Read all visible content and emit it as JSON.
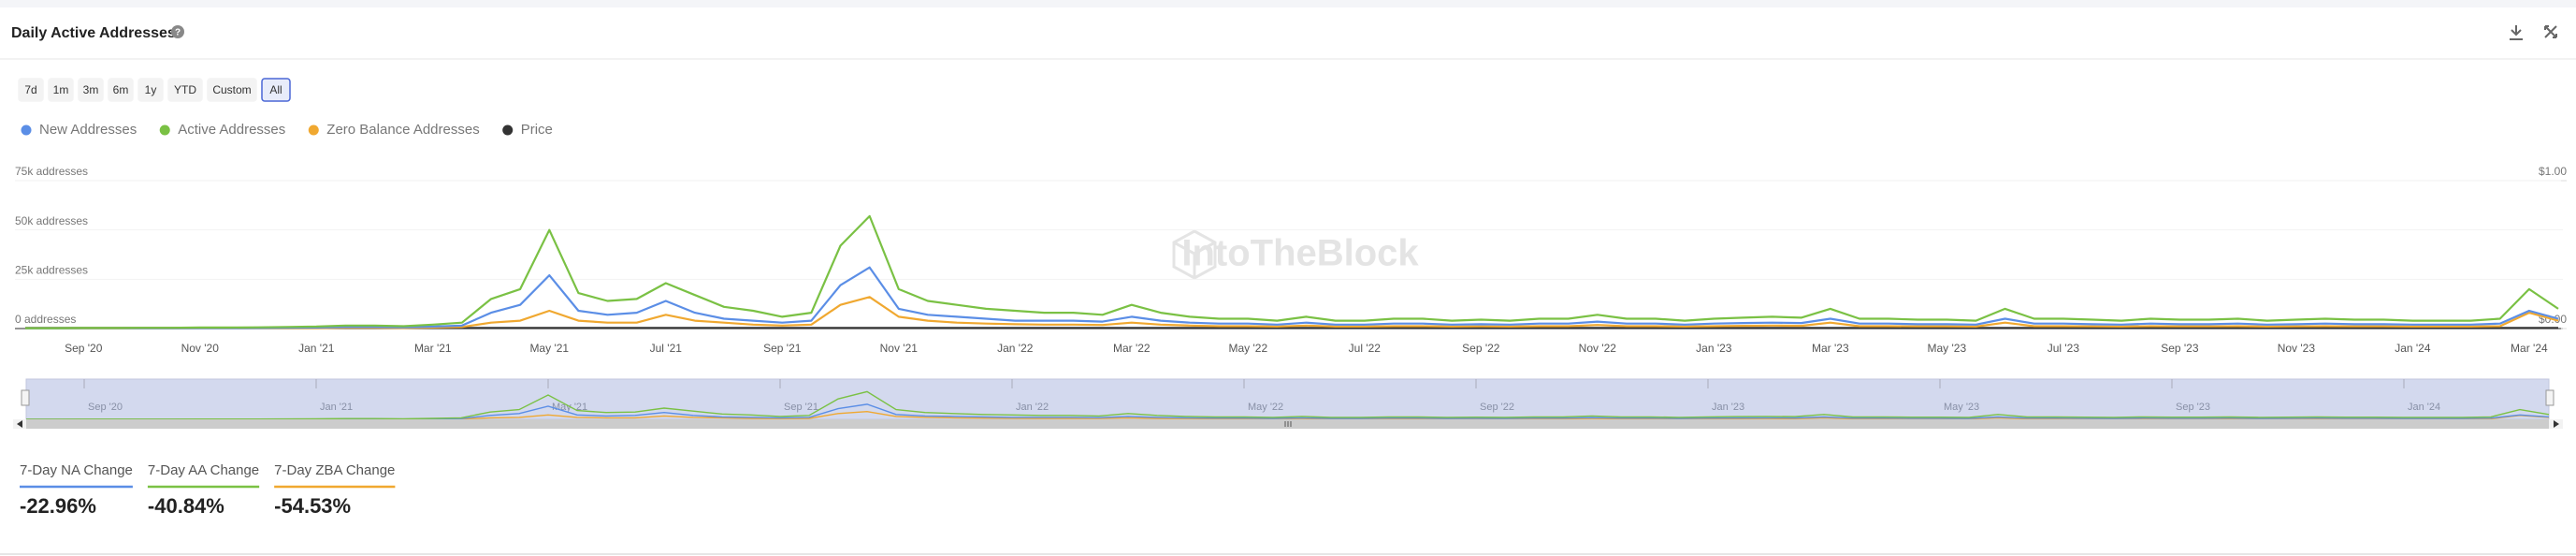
{
  "header": {
    "title": "Daily Active Addresses"
  },
  "range_buttons": [
    "7d",
    "1m",
    "3m",
    "6m",
    "1y",
    "YTD",
    "Custom",
    "All"
  ],
  "active_range": 7,
  "watermark": "IntoTheBlock",
  "chart_data": {
    "type": "line",
    "categories": [
      null,
      null,
      "Sep '20",
      null,
      null,
      null,
      "Nov '20",
      null,
      null,
      null,
      "Jan '21",
      null,
      null,
      null,
      "Mar '21",
      null,
      null,
      null,
      "May '21",
      null,
      null,
      null,
      "Jul '21",
      null,
      null,
      null,
      "Sep '21",
      null,
      null,
      null,
      "Nov '21",
      null,
      null,
      null,
      "Jan '22",
      null,
      null,
      null,
      "Mar '22",
      null,
      null,
      null,
      "May '22",
      null,
      null,
      null,
      "Jul '22",
      null,
      null,
      null,
      "Sep '22",
      null,
      null,
      null,
      "Nov '22",
      null,
      null,
      null,
      "Jan '23",
      null,
      null,
      null,
      "Mar '23",
      null,
      null,
      null,
      "May '23",
      null,
      null,
      null,
      "Jul '23",
      null,
      null,
      null,
      "Sep '23",
      null,
      null,
      null,
      "Nov '23",
      null,
      null,
      null,
      "Jan '24",
      null,
      null,
      null,
      "Mar '24",
      null
    ],
    "series": [
      {
        "name": "New Addresses",
        "color": "#5b8ee6",
        "values": [
          100,
          100,
          150,
          150,
          200,
          200,
          250,
          250,
          300,
          400,
          500,
          800,
          800,
          600,
          1000,
          1500,
          8000,
          12000,
          27000,
          9000,
          7000,
          8000,
          14000,
          8000,
          5000,
          4000,
          3000,
          4000,
          22000,
          31000,
          10000,
          7000,
          6000,
          5000,
          4000,
          4000,
          4000,
          3500,
          6000,
          4000,
          3000,
          2500,
          2500,
          2000,
          3000,
          2000,
          2000,
          2500,
          2500,
          2000,
          2200,
          2000,
          2500,
          2500,
          3500,
          2500,
          2500,
          2000,
          2500,
          2800,
          3000,
          2800,
          5000,
          2500,
          2500,
          2200,
          2200,
          2000,
          5000,
          2500,
          2500,
          2200,
          2000,
          2500,
          2200,
          2200,
          2500,
          2000,
          2200,
          2500,
          2200,
          2200,
          2000,
          2000,
          2000,
          2500,
          9000,
          5000
        ]
      },
      {
        "name": "Active Addresses",
        "color": "#7ac144",
        "values": [
          200,
          200,
          300,
          300,
          400,
          400,
          500,
          500,
          600,
          800,
          1000,
          1500,
          1500,
          1200,
          2000,
          3000,
          15000,
          20000,
          50000,
          18000,
          14000,
          15000,
          23000,
          17000,
          11000,
          9000,
          6000,
          8000,
          42000,
          57000,
          20000,
          14000,
          12000,
          10000,
          9000,
          8000,
          8000,
          7000,
          12000,
          8000,
          6000,
          5000,
          5000,
          4000,
          6000,
          4000,
          4000,
          5000,
          5000,
          4000,
          4500,
          4000,
          5000,
          5000,
          7000,
          5000,
          5000,
          4000,
          5000,
          5500,
          6000,
          5500,
          10000,
          5000,
          5000,
          4500,
          4500,
          4000,
          10000,
          5000,
          5000,
          4500,
          4000,
          5000,
          4500,
          4500,
          5000,
          4000,
          4500,
          5000,
          4500,
          4500,
          4000,
          4000,
          4000,
          5000,
          20000,
          10000
        ]
      },
      {
        "name": "Zero Balance Addresses",
        "color": "#f0a830",
        "values": [
          50,
          50,
          80,
          80,
          100,
          100,
          120,
          120,
          150,
          200,
          250,
          400,
          400,
          300,
          500,
          800,
          3000,
          4000,
          9000,
          4000,
          3000,
          3000,
          7000,
          4000,
          3000,
          2000,
          1500,
          2000,
          12000,
          16000,
          6000,
          4000,
          3000,
          2500,
          2200,
          2000,
          2000,
          1800,
          3000,
          2000,
          1500,
          1200,
          1200,
          1000,
          1500,
          1000,
          1000,
          1200,
          1200,
          1000,
          1100,
          1000,
          1200,
          1200,
          1800,
          1200,
          1200,
          1000,
          1200,
          1400,
          1500,
          1400,
          3000,
          1200,
          1200,
          1100,
          1100,
          1000,
          3000,
          1200,
          1200,
          1100,
          1000,
          1200,
          1100,
          1100,
          1200,
          1000,
          1100,
          1200,
          1100,
          1100,
          1000,
          1000,
          1000,
          1200,
          8000,
          4000
        ]
      },
      {
        "name": "Price",
        "color": "#333333",
        "axis": "y2",
        "values": [
          0.004,
          0.004,
          0.004,
          0.004,
          0.004,
          0.004,
          0.004,
          0.004,
          0.004,
          0.004,
          0.004,
          0.004,
          0.004,
          0.004,
          0.004,
          0.004,
          0.004,
          0.004,
          0.004,
          0.004,
          0.004,
          0.004,
          0.004,
          0.004,
          0.004,
          0.004,
          0.004,
          0.004,
          0.004,
          0.004,
          0.004,
          0.004,
          0.004,
          0.004,
          0.004,
          0.004,
          0.004,
          0.004,
          0.004,
          0.004,
          0.004,
          0.004,
          0.004,
          0.004,
          0.004,
          0.004,
          0.004,
          0.004,
          0.004,
          0.004,
          0.004,
          0.004,
          0.004,
          0.004,
          0.004,
          0.004,
          0.004,
          0.004,
          0.004,
          0.004,
          0.004,
          0.004,
          0.004,
          0.004,
          0.004,
          0.004,
          0.004,
          0.004,
          0.004,
          0.004,
          0.004,
          0.004,
          0.004,
          0.004,
          0.004,
          0.004,
          0.004,
          0.004,
          0.004,
          0.004,
          0.004,
          0.004,
          0.004,
          0.004,
          0.004,
          0.004,
          0.004,
          0.004
        ]
      }
    ],
    "ylim": [
      0,
      75000
    ],
    "yticks": [
      {
        "value": 0,
        "label": "0 addresses"
      },
      {
        "value": 25000,
        "label": "25k addresses"
      },
      {
        "value": 50000,
        "label": "50k addresses"
      },
      {
        "value": 75000,
        "label": "75k addresses"
      }
    ],
    "y2lim": [
      0,
      1
    ],
    "y2ticks": [
      {
        "value": 0,
        "label": "$0.00"
      },
      {
        "value": 1,
        "label": "$1.00"
      }
    ],
    "grid": true,
    "legend": "top-left"
  },
  "stats": [
    {
      "label": "7-Day NA Change",
      "value": "-22.96%",
      "color": "#5b8ee6"
    },
    {
      "label": "7-Day AA Change",
      "value": "-40.84%",
      "color": "#7ac144"
    },
    {
      "label": "7-Day ZBA Change",
      "value": "-54.53%",
      "color": "#f0a830"
    }
  ]
}
